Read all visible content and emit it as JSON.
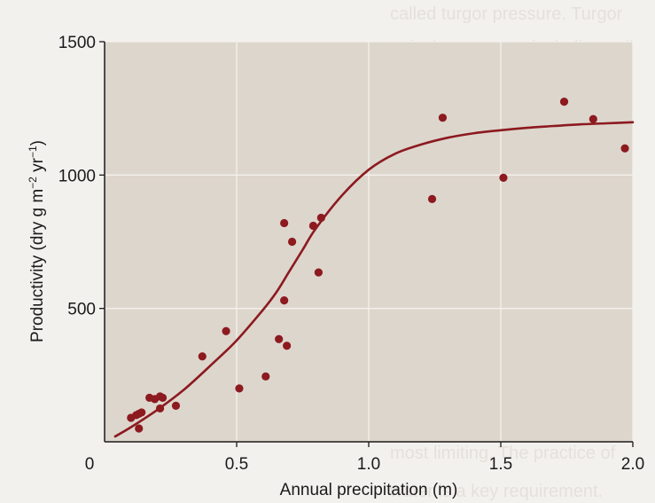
{
  "colors": {
    "plot_background": "#ddd6cd",
    "grid": "#f4f1ec",
    "series": "#8c1a1f",
    "axis": "#1a1a1a"
  },
  "chart_data": {
    "type": "scatter",
    "xlabel": "Annual precipitation (m)",
    "ylabel": {
      "prefix": "Productivity (dry g m",
      "exp1": "−2",
      "mid": " yr",
      "exp2": "−1",
      "suffix": ")"
    },
    "xlim": [
      0,
      2.0
    ],
    "ylim": [
      0,
      1500
    ],
    "x_ticks": [
      "0",
      "0.5",
      "1.0",
      "1.5",
      "2.0"
    ],
    "x_tick_values": [
      0,
      0.5,
      1.0,
      1.5,
      2.0
    ],
    "y_ticks": [
      "500",
      "1000",
      "1500"
    ],
    "y_tick_values": [
      500,
      1000,
      1500
    ],
    "grid": true,
    "points": [
      {
        "x": 0.1,
        "y": 90
      },
      {
        "x": 0.12,
        "y": 100
      },
      {
        "x": 0.13,
        "y": 105
      },
      {
        "x": 0.14,
        "y": 110
      },
      {
        "x": 0.13,
        "y": 50
      },
      {
        "x": 0.17,
        "y": 165
      },
      {
        "x": 0.19,
        "y": 160
      },
      {
        "x": 0.21,
        "y": 170
      },
      {
        "x": 0.22,
        "y": 165
      },
      {
        "x": 0.21,
        "y": 125
      },
      {
        "x": 0.27,
        "y": 135
      },
      {
        "x": 0.37,
        "y": 320
      },
      {
        "x": 0.46,
        "y": 415
      },
      {
        "x": 0.51,
        "y": 200
      },
      {
        "x": 0.61,
        "y": 245
      },
      {
        "x": 0.66,
        "y": 385
      },
      {
        "x": 0.69,
        "y": 360
      },
      {
        "x": 0.68,
        "y": 530
      },
      {
        "x": 0.68,
        "y": 820
      },
      {
        "x": 0.71,
        "y": 750
      },
      {
        "x": 0.79,
        "y": 810
      },
      {
        "x": 0.82,
        "y": 840
      },
      {
        "x": 0.81,
        "y": 635
      },
      {
        "x": 1.24,
        "y": 910
      },
      {
        "x": 1.28,
        "y": 1215
      },
      {
        "x": 1.51,
        "y": 990
      },
      {
        "x": 1.74,
        "y": 1275
      },
      {
        "x": 1.85,
        "y": 1210
      },
      {
        "x": 1.97,
        "y": 1100
      }
    ],
    "fit_curve": [
      {
        "x": 0.04,
        "y": 20
      },
      {
        "x": 0.1,
        "y": 55
      },
      {
        "x": 0.2,
        "y": 120
      },
      {
        "x": 0.3,
        "y": 195
      },
      {
        "x": 0.4,
        "y": 285
      },
      {
        "x": 0.5,
        "y": 380
      },
      {
        "x": 0.6,
        "y": 495
      },
      {
        "x": 0.65,
        "y": 560
      },
      {
        "x": 0.7,
        "y": 640
      },
      {
        "x": 0.75,
        "y": 720
      },
      {
        "x": 0.8,
        "y": 800
      },
      {
        "x": 0.9,
        "y": 925
      },
      {
        "x": 1.0,
        "y": 1020
      },
      {
        "x": 1.1,
        "y": 1080
      },
      {
        "x": 1.2,
        "y": 1115
      },
      {
        "x": 1.3,
        "y": 1140
      },
      {
        "x": 1.4,
        "y": 1157
      },
      {
        "x": 1.5,
        "y": 1168
      },
      {
        "x": 1.6,
        "y": 1177
      },
      {
        "x": 1.7,
        "y": 1184
      },
      {
        "x": 1.8,
        "y": 1190
      },
      {
        "x": 1.9,
        "y": 1194
      },
      {
        "x": 2.0,
        "y": 1198
      }
    ]
  }
}
